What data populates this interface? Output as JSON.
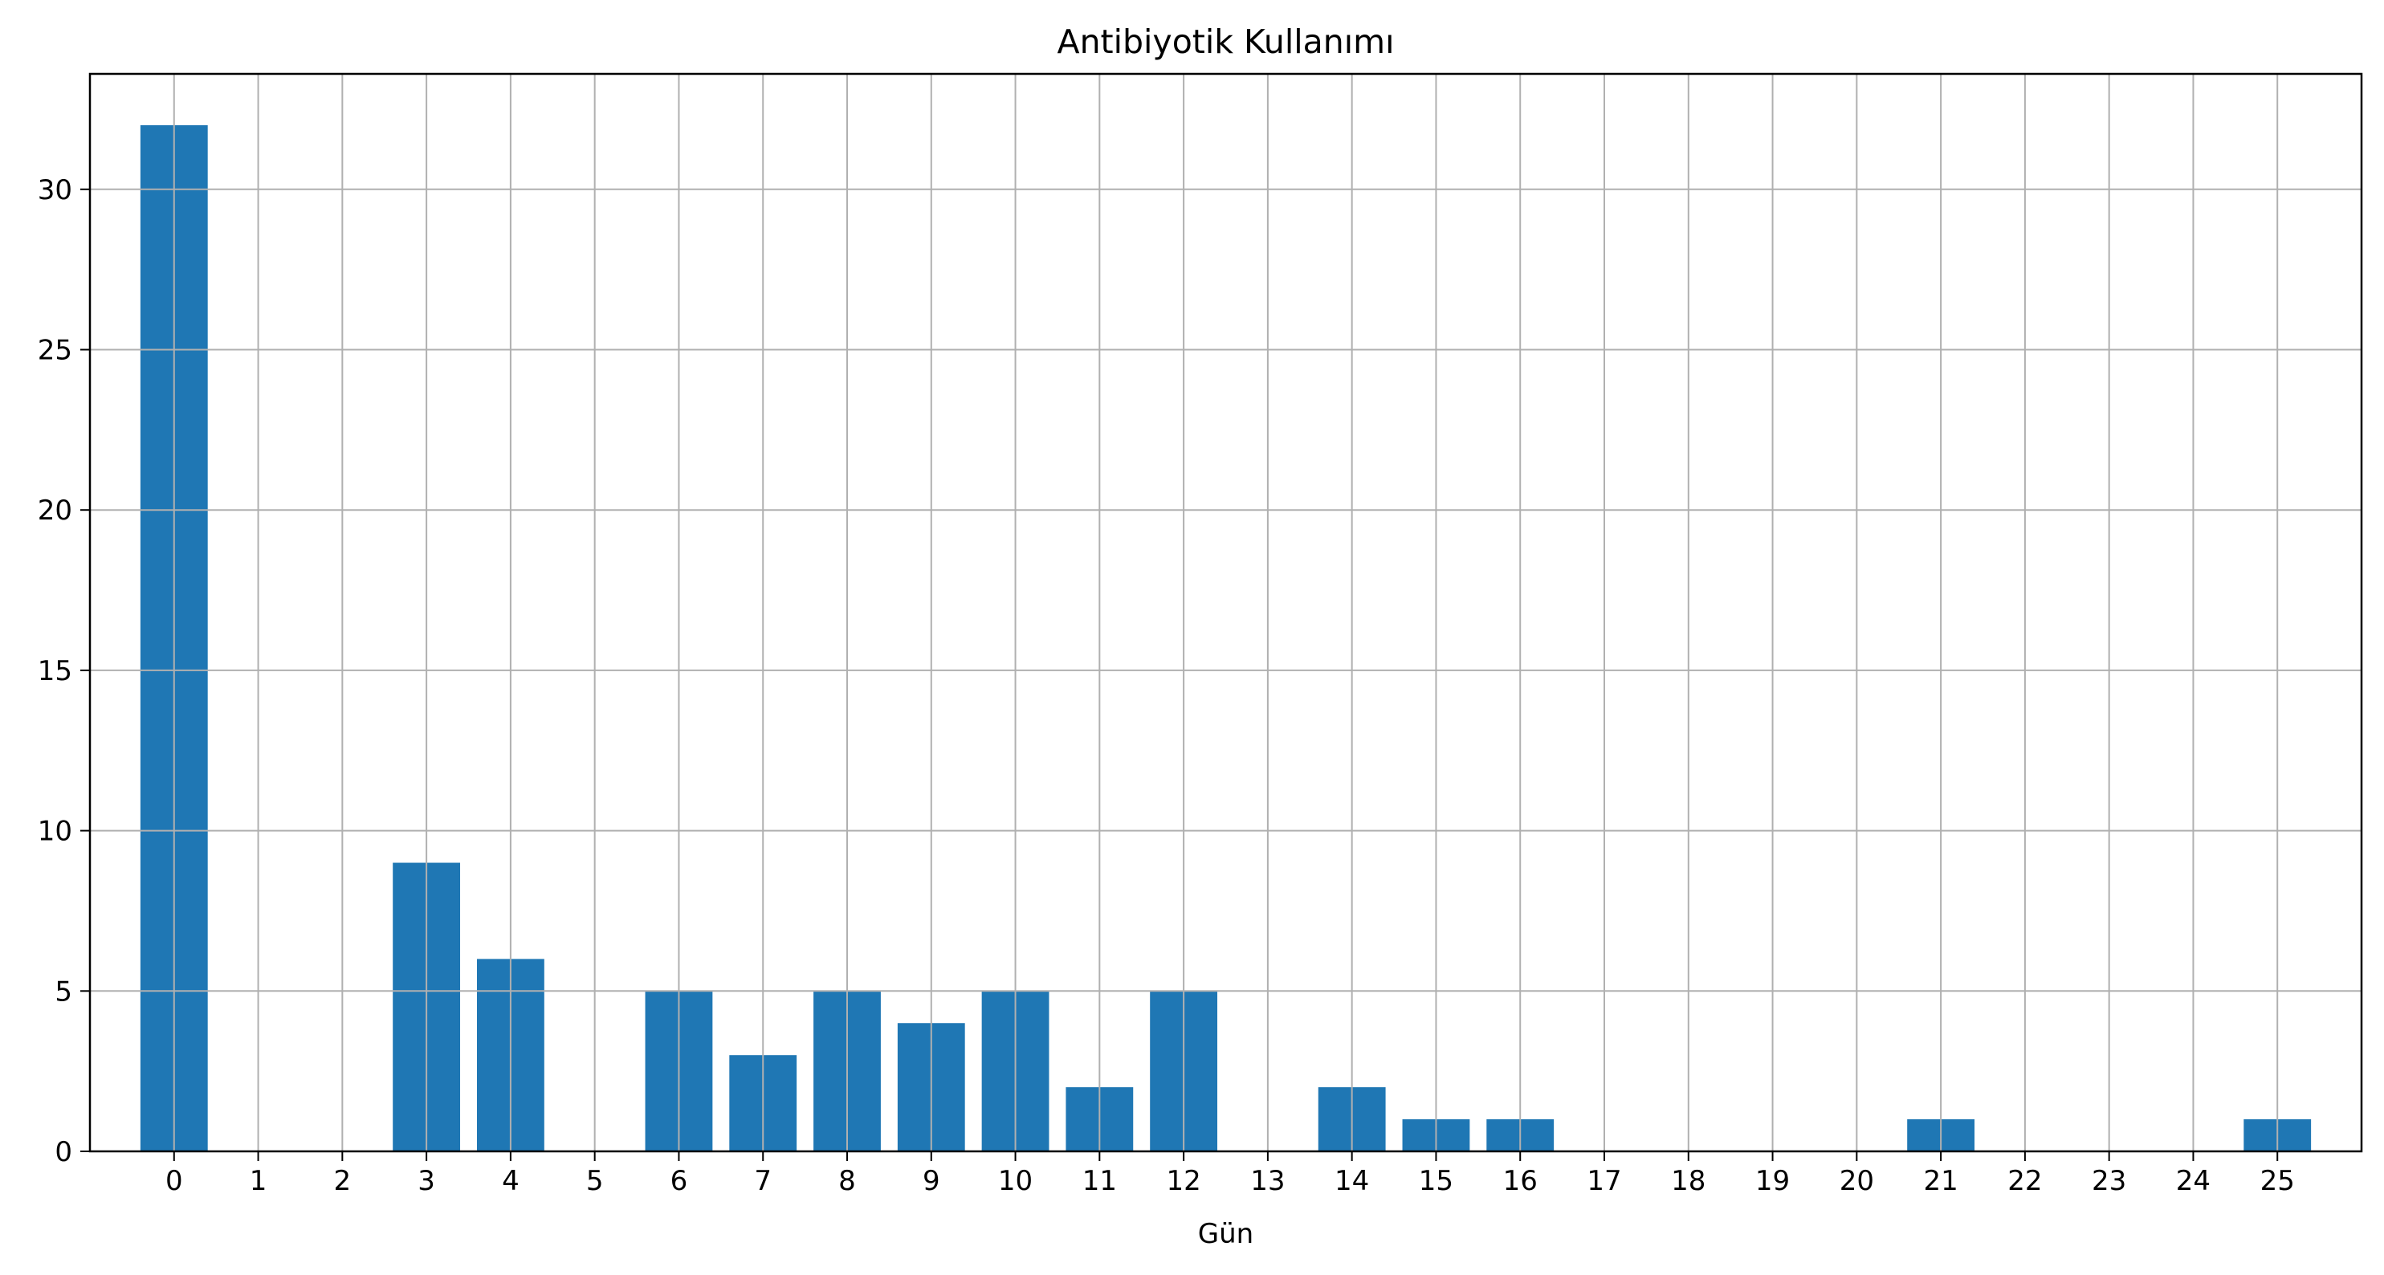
{
  "chart_data": {
    "type": "bar",
    "title": "Antibiyotik Kullanımı",
    "xlabel": "Gün",
    "ylabel": "",
    "categories": [
      "0",
      "1",
      "2",
      "3",
      "4",
      "5",
      "6",
      "7",
      "8",
      "9",
      "10",
      "11",
      "12",
      "13",
      "14",
      "15",
      "16",
      "17",
      "18",
      "19",
      "20",
      "21",
      "22",
      "23",
      "24",
      "25"
    ],
    "values": [
      32,
      0,
      0,
      9,
      6,
      0,
      5,
      3,
      5,
      4,
      5,
      2,
      5,
      0,
      2,
      1,
      1,
      0,
      0,
      0,
      0,
      1,
      0,
      0,
      0,
      1
    ],
    "ylim": [
      0,
      33.6
    ],
    "yticks": [
      0,
      5,
      10,
      15,
      20,
      25,
      30
    ],
    "xlim": [
      -1.0,
      26.0
    ],
    "grid": true,
    "bar_color": "#1f77b4",
    "grid_color": "#b0b0b0"
  }
}
